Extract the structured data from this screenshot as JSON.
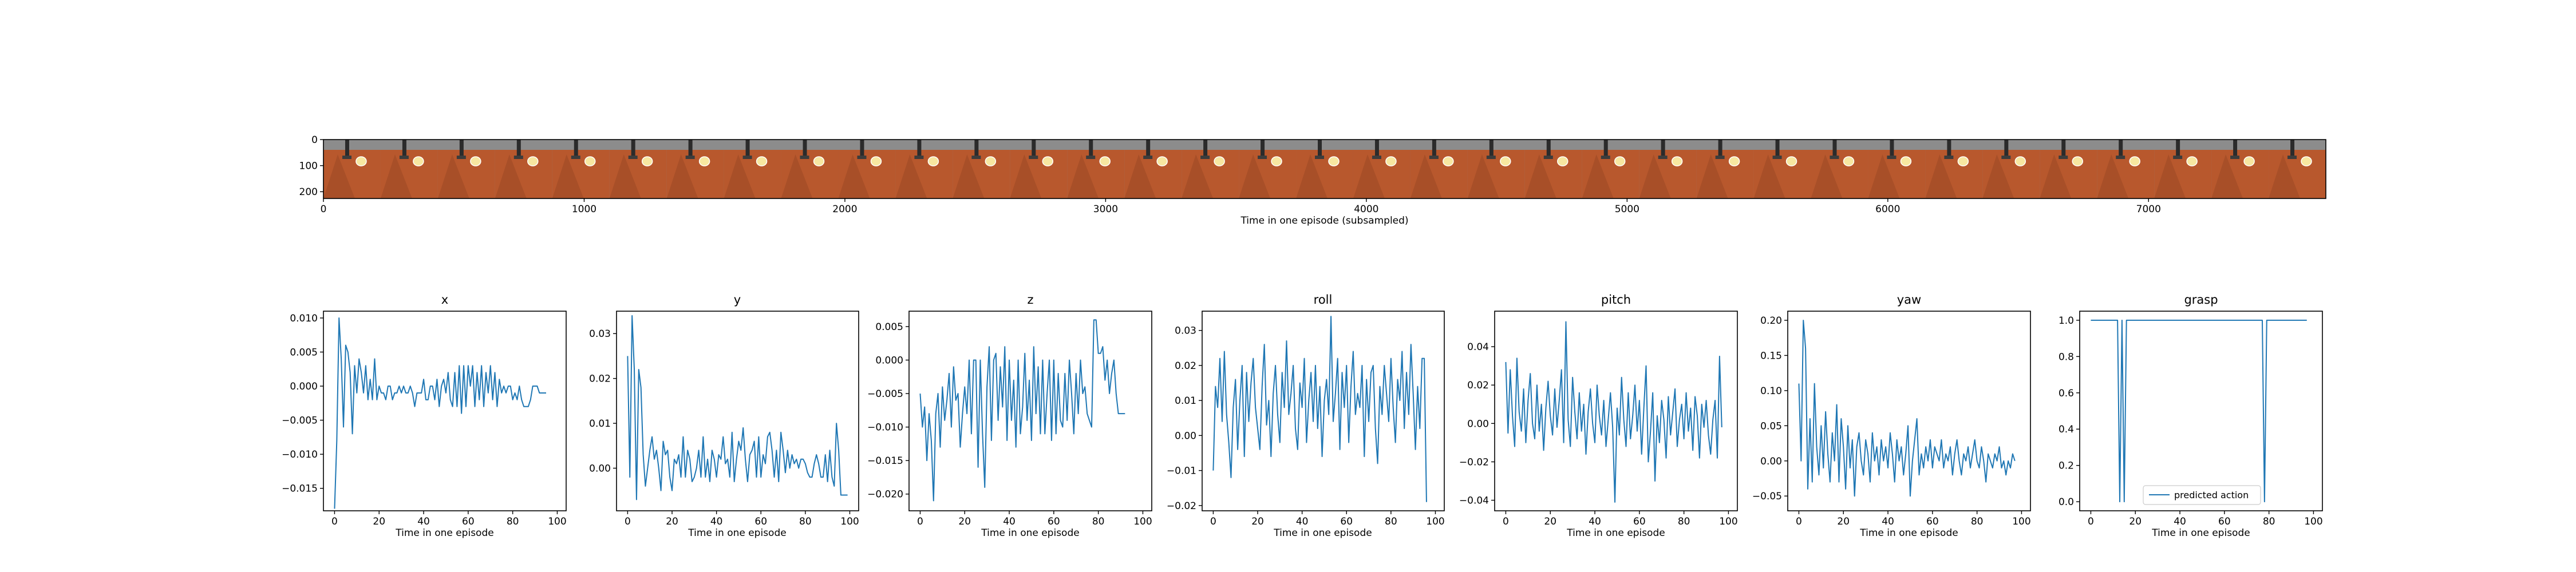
{
  "filmstrip": {
    "xlabel": "Time in one episode (subsampled)",
    "x_ticks": [
      0,
      1000,
      2000,
      3000,
      4000,
      5000,
      6000,
      7000
    ],
    "y_ticks": [
      0,
      100,
      200
    ],
    "x_range": [
      0,
      7680
    ],
    "y_range": [
      0,
      226
    ],
    "frame_count": 35
  },
  "colors": {
    "line": "#1f77b4",
    "table": "#b8582d",
    "table_dark": "#8a3f1f",
    "background_gray": "#8c8c8c",
    "object_yellow": "#f7e7a0"
  },
  "chart_data": [
    {
      "type": "line",
      "title": "x",
      "xlabel": "Time in one episode",
      "xlim": [
        -5,
        104
      ],
      "ylim": [
        -0.0183,
        0.011
      ],
      "x_ticks": [
        0,
        20,
        40,
        60,
        80,
        100
      ],
      "y_ticks": [
        -0.015,
        -0.01,
        -0.005,
        0.0,
        0.005,
        0.01
      ],
      "y_tick_labels": [
        "−0.015",
        "−0.010",
        "−0.005",
        "0.000",
        "0.005",
        "0.010"
      ],
      "series": [
        {
          "values": [
            -0.018,
            -0.008,
            0.01,
            0.004,
            -0.006,
            0.006,
            0.005,
            0.002,
            -0.007,
            0.003,
            -0.001,
            0.004,
            0.002,
            -0.001,
            0.003,
            -0.002,
            0.001,
            -0.002,
            0.004,
            -0.002,
            0.0,
            -0.001,
            -0.001,
            -0.002,
            0.0,
            0.0,
            -0.002,
            -0.001,
            -0.001,
            0.0,
            -0.001,
            0.0,
            -0.001,
            -0.001,
            0.0,
            -0.001,
            -0.003,
            -0.001,
            -0.001,
            -0.001,
            0.001,
            -0.002,
            -0.002,
            0.0,
            0.0,
            -0.002,
            0.001,
            -0.003,
            0.0,
            0.001,
            -0.001,
            0.002,
            -0.002,
            -0.003,
            0.002,
            -0.003,
            0.003,
            -0.004,
            0.003,
            -0.003,
            0.003,
            0.0,
            0.003,
            -0.003,
            0.002,
            -0.002,
            0.003,
            -0.003,
            0.002,
            -0.001,
            0.003,
            -0.002,
            0.002,
            -0.003,
            0.001,
            -0.001,
            0.0,
            -0.001,
            0.0,
            0.0,
            -0.002,
            -0.001,
            -0.002,
            0.0,
            -0.002,
            -0.003,
            -0.003,
            -0.003,
            -0.002,
            0.0,
            0.0,
            0.0,
            -0.001,
            -0.001,
            -0.001,
            -0.001
          ]
        }
      ]
    },
    {
      "type": "line",
      "title": "y",
      "xlabel": "Time in one episode",
      "xlim": [
        -5,
        104
      ],
      "ylim": [
        -0.0095,
        0.035
      ],
      "x_ticks": [
        0,
        20,
        40,
        60,
        80,
        100
      ],
      "y_ticks": [
        0.0,
        0.01,
        0.02,
        0.03
      ],
      "y_tick_labels": [
        "0.00",
        "0.01",
        "0.02",
        "0.03"
      ],
      "series": [
        {
          "values": [
            0.025,
            -0.002,
            0.034,
            0.022,
            -0.007,
            0.022,
            0.018,
            0.003,
            -0.004,
            0.0,
            0.004,
            0.007,
            0.002,
            0.004,
            0.0,
            -0.005,
            0.006,
            0.003,
            0.004,
            -0.002,
            -0.005,
            0.002,
            0.001,
            0.003,
            -0.002,
            0.007,
            -0.002,
            0.004,
            0.002,
            -0.003,
            -0.002,
            0.0,
            0.004,
            -0.002,
            0.007,
            -0.002,
            0.002,
            -0.003,
            0.004,
            0.002,
            -0.002,
            0.003,
            0.002,
            0.007,
            0.001,
            0.002,
            -0.002,
            0.008,
            -0.003,
            0.002,
            0.006,
            0.004,
            0.009,
            0.002,
            -0.003,
            0.003,
            0.004,
            0.006,
            -0.002,
            0.007,
            -0.002,
            0.003,
            0.001,
            0.007,
            0.008,
            0.004,
            -0.002,
            0.004,
            -0.003,
            0.008,
            0.004,
            -0.001,
            0.004,
            0.0,
            0.003,
            0.001,
            0.002,
            0.0,
            0.002,
            0.002,
            0.001,
            -0.001,
            -0.002,
            -0.002,
            0.001,
            0.003,
            0.001,
            -0.002,
            -0.002,
            0.003,
            -0.003,
            0.004,
            -0.002,
            -0.004,
            0.01,
            0.004,
            -0.006,
            -0.006,
            -0.006,
            -0.006
          ]
        }
      ]
    },
    {
      "type": "line",
      "title": "z",
      "xlabel": "Time in one episode",
      "xlim": [
        -5,
        104
      ],
      "ylim": [
        -0.0225,
        0.0073
      ],
      "x_ticks": [
        0,
        20,
        40,
        60,
        80,
        100
      ],
      "y_ticks": [
        -0.02,
        -0.015,
        -0.01,
        -0.005,
        0.0,
        0.005
      ],
      "y_tick_labels": [
        "−0.020",
        "−0.015",
        "−0.010",
        "−0.005",
        "0.000",
        "0.005"
      ],
      "series": [
        {
          "values": [
            -0.005,
            -0.01,
            -0.007,
            -0.015,
            -0.008,
            -0.012,
            -0.021,
            -0.008,
            -0.005,
            -0.013,
            -0.004,
            -0.009,
            -0.006,
            -0.002,
            -0.01,
            -0.001,
            -0.006,
            -0.005,
            -0.013,
            -0.008,
            -0.004,
            -0.008,
            0.0,
            -0.011,
            0.0,
            0.0,
            -0.016,
            0.0,
            -0.011,
            -0.019,
            -0.004,
            0.002,
            -0.012,
            0.0,
            0.001,
            -0.009,
            -0.001,
            -0.007,
            0.002,
            -0.012,
            0.0,
            -0.009,
            -0.003,
            -0.013,
            0.0,
            -0.011,
            -0.007,
            0.001,
            -0.009,
            -0.003,
            -0.012,
            0.002,
            -0.008,
            -0.001,
            -0.011,
            0.0,
            -0.011,
            -0.005,
            0.0,
            -0.012,
            0.0,
            -0.011,
            -0.002,
            -0.009,
            -0.01,
            -0.002,
            -0.009,
            0.0,
            -0.005,
            -0.011,
            -0.002,
            -0.008,
            0.0,
            -0.005,
            -0.004,
            -0.008,
            -0.009,
            -0.01,
            0.006,
            0.006,
            0.001,
            0.001,
            0.002,
            -0.003,
            0.0,
            -0.005,
            -0.002,
            0.0,
            -0.005,
            -0.008,
            -0.008,
            -0.008,
            -0.008
          ]
        }
      ]
    },
    {
      "type": "line",
      "title": "roll",
      "xlabel": "Time in one episode",
      "xlim": [
        -5,
        104
      ],
      "ylim": [
        -0.0215,
        0.0355
      ],
      "x_ticks": [
        0,
        20,
        40,
        60,
        80,
        100
      ],
      "y_ticks": [
        -0.02,
        -0.01,
        0.0,
        0.01,
        0.02,
        0.03
      ],
      "y_tick_labels": [
        "−0.02",
        "−0.01",
        "0.00",
        "0.01",
        "0.02",
        "0.03"
      ],
      "series": [
        {
          "values": [
            -0.01,
            0.014,
            0.008,
            0.022,
            0.004,
            0.024,
            0.006,
            -0.002,
            -0.012,
            0.008,
            0.016,
            -0.004,
            0.01,
            0.02,
            -0.006,
            0.018,
            0.004,
            0.015,
            0.022,
            0.008,
            0.002,
            -0.004,
            0.014,
            0.026,
            0.003,
            0.01,
            -0.006,
            0.012,
            0.02,
            0.006,
            -0.002,
            0.018,
            0.008,
            0.027,
            0.006,
            0.012,
            0.02,
            0.002,
            -0.004,
            0.015,
            0.008,
            0.022,
            -0.002,
            0.01,
            0.018,
            0.004,
            0.02,
            0.002,
            0.014,
            -0.006,
            0.01,
            0.016,
            0.006,
            0.034,
            0.004,
            0.012,
            0.022,
            -0.004,
            0.018,
            0.008,
            0.02,
            -0.002,
            0.014,
            0.024,
            0.006,
            0.012,
            0.008,
            0.02,
            -0.006,
            0.016,
            0.004,
            0.018,
            0.02,
            0.002,
            -0.008,
            0.014,
            0.006,
            0.02,
            0.012,
            0.004,
            0.022,
            0.008,
            -0.002,
            0.016,
            0.01,
            0.024,
            0.002,
            0.018,
            0.006,
            0.026,
            0.012,
            -0.004,
            0.014,
            0.002,
            0.022,
            0.022,
            -0.019
          ]
        }
      ]
    },
    {
      "type": "line",
      "title": "pitch",
      "xlabel": "Time in one episode",
      "xlim": [
        -5,
        104
      ],
      "ylim": [
        -0.0455,
        0.0585
      ],
      "x_ticks": [
        0,
        20,
        40,
        60,
        80,
        100
      ],
      "y_ticks": [
        -0.04,
        -0.02,
        0.0,
        0.02,
        0.04
      ],
      "y_tick_labels": [
        "−0.04",
        "−0.02",
        "0.00",
        "0.02",
        "0.04"
      ],
      "series": [
        {
          "values": [
            0.032,
            -0.005,
            0.028,
            0.004,
            -0.012,
            0.034,
            0.006,
            -0.004,
            0.018,
            -0.01,
            0.012,
            0.026,
            0.0,
            -0.008,
            0.02,
            -0.004,
            0.01,
            -0.014,
            0.008,
            0.022,
            0.004,
            -0.006,
            0.018,
            -0.002,
            0.012,
            0.028,
            -0.01,
            0.053,
            0.002,
            -0.012,
            0.024,
            0.006,
            -0.008,
            0.016,
            -0.004,
            0.01,
            -0.016,
            0.006,
            0.018,
            0.0,
            -0.01,
            0.02,
            0.004,
            -0.006,
            0.012,
            -0.012,
            0.002,
            0.016,
            -0.002,
            -0.041,
            0.008,
            -0.006,
            0.024,
            0.002,
            -0.012,
            0.016,
            -0.008,
            0.004,
            0.02,
            -0.004,
            0.012,
            -0.016,
            0.008,
            0.03,
            -0.02,
            -0.004,
            0.016,
            -0.03,
            0.004,
            -0.01,
            0.012,
            0.002,
            -0.018,
            0.014,
            -0.006,
            0.006,
            0.018,
            -0.012,
            0.002,
            0.01,
            -0.008,
            0.016,
            -0.004,
            0.008,
            -0.014,
            0.014,
            0.004,
            -0.018,
            0.01,
            -0.002,
            0.012,
            -0.006,
            -0.016,
            0.002,
            0.012,
            -0.018,
            0.035,
            -0.002
          ]
        }
      ]
    },
    {
      "type": "line",
      "title": "yaw",
      "xlabel": "Time in one episode",
      "xlim": [
        -5,
        104
      ],
      "ylim": [
        -0.071,
        0.213
      ],
      "x_ticks": [
        0,
        20,
        40,
        60,
        80,
        100
      ],
      "y_ticks": [
        -0.05,
        0.0,
        0.05,
        0.1,
        0.15,
        0.2
      ],
      "y_tick_labels": [
        "−0.05",
        "0.00",
        "0.05",
        "0.10",
        "0.15",
        "0.20"
      ],
      "series": [
        {
          "values": [
            0.11,
            0.0,
            0.2,
            0.16,
            -0.04,
            0.06,
            -0.03,
            0.11,
            0.02,
            -0.02,
            0.05,
            -0.01,
            0.07,
            0.01,
            -0.03,
            0.04,
            0.0,
            0.08,
            -0.03,
            0.06,
            0.02,
            -0.04,
            0.05,
            -0.01,
            0.03,
            -0.05,
            0.02,
            0.04,
            0.0,
            -0.02,
            0.03,
            0.01,
            -0.03,
            0.04,
            0.0,
            0.02,
            -0.02,
            0.03,
            0.0,
            0.02,
            -0.01,
            0.04,
            0.01,
            -0.03,
            0.03,
            0.0,
            0.02,
            -0.02,
            0.01,
            0.05,
            -0.05,
            0.0,
            0.03,
            0.06,
            -0.02,
            0.01,
            -0.01,
            0.02,
            0.0,
            0.03,
            -0.01,
            0.02,
            0.01,
            0.0,
            0.03,
            -0.01,
            0.01,
            0.0,
            0.02,
            -0.02,
            0.01,
            0.03,
            0.0,
            -0.02,
            0.01,
            0.0,
            0.02,
            -0.01,
            0.01,
            0.03,
            0.0,
            -0.01,
            0.02,
            0.0,
            -0.03,
            0.01,
            0.0,
            -0.01,
            0.01,
            0.0,
            0.02,
            -0.01,
            0.0,
            -0.02,
            0.0,
            -0.01,
            0.01,
            0.0
          ]
        }
      ]
    },
    {
      "type": "line",
      "title": "grasp",
      "xlabel": "Time in one episode",
      "xlim": [
        -5,
        104
      ],
      "ylim": [
        -0.05,
        1.05
      ],
      "x_ticks": [
        0,
        20,
        40,
        60,
        80,
        100
      ],
      "y_ticks": [
        0.0,
        0.2,
        0.4,
        0.6,
        0.8,
        1.0
      ],
      "y_tick_labels": [
        "0.0",
        "0.2",
        "0.4",
        "0.6",
        "0.8",
        "1.0"
      ],
      "legend": {
        "label": "predicted action",
        "position": "lower center"
      },
      "series": [
        {
          "name": "predicted action",
          "values": [
            1,
            1,
            1,
            1,
            1,
            1,
            1,
            1,
            1,
            1,
            1,
            1,
            1,
            0,
            1,
            0,
            1,
            1,
            1,
            1,
            1,
            1,
            1,
            1,
            1,
            1,
            1,
            1,
            1,
            1,
            1,
            1,
            1,
            1,
            1,
            1,
            1,
            1,
            1,
            1,
            1,
            1,
            1,
            1,
            1,
            1,
            1,
            1,
            1,
            1,
            1,
            1,
            1,
            1,
            1,
            1,
            1,
            1,
            1,
            1,
            1,
            1,
            1,
            1,
            1,
            1,
            1,
            1,
            1,
            1,
            1,
            1,
            1,
            1,
            1,
            1,
            1,
            1,
            0,
            1,
            1,
            1,
            1,
            1,
            1,
            1,
            1,
            1,
            1,
            1,
            1,
            1,
            1,
            1,
            1,
            1,
            1,
            1
          ]
        }
      ]
    }
  ]
}
